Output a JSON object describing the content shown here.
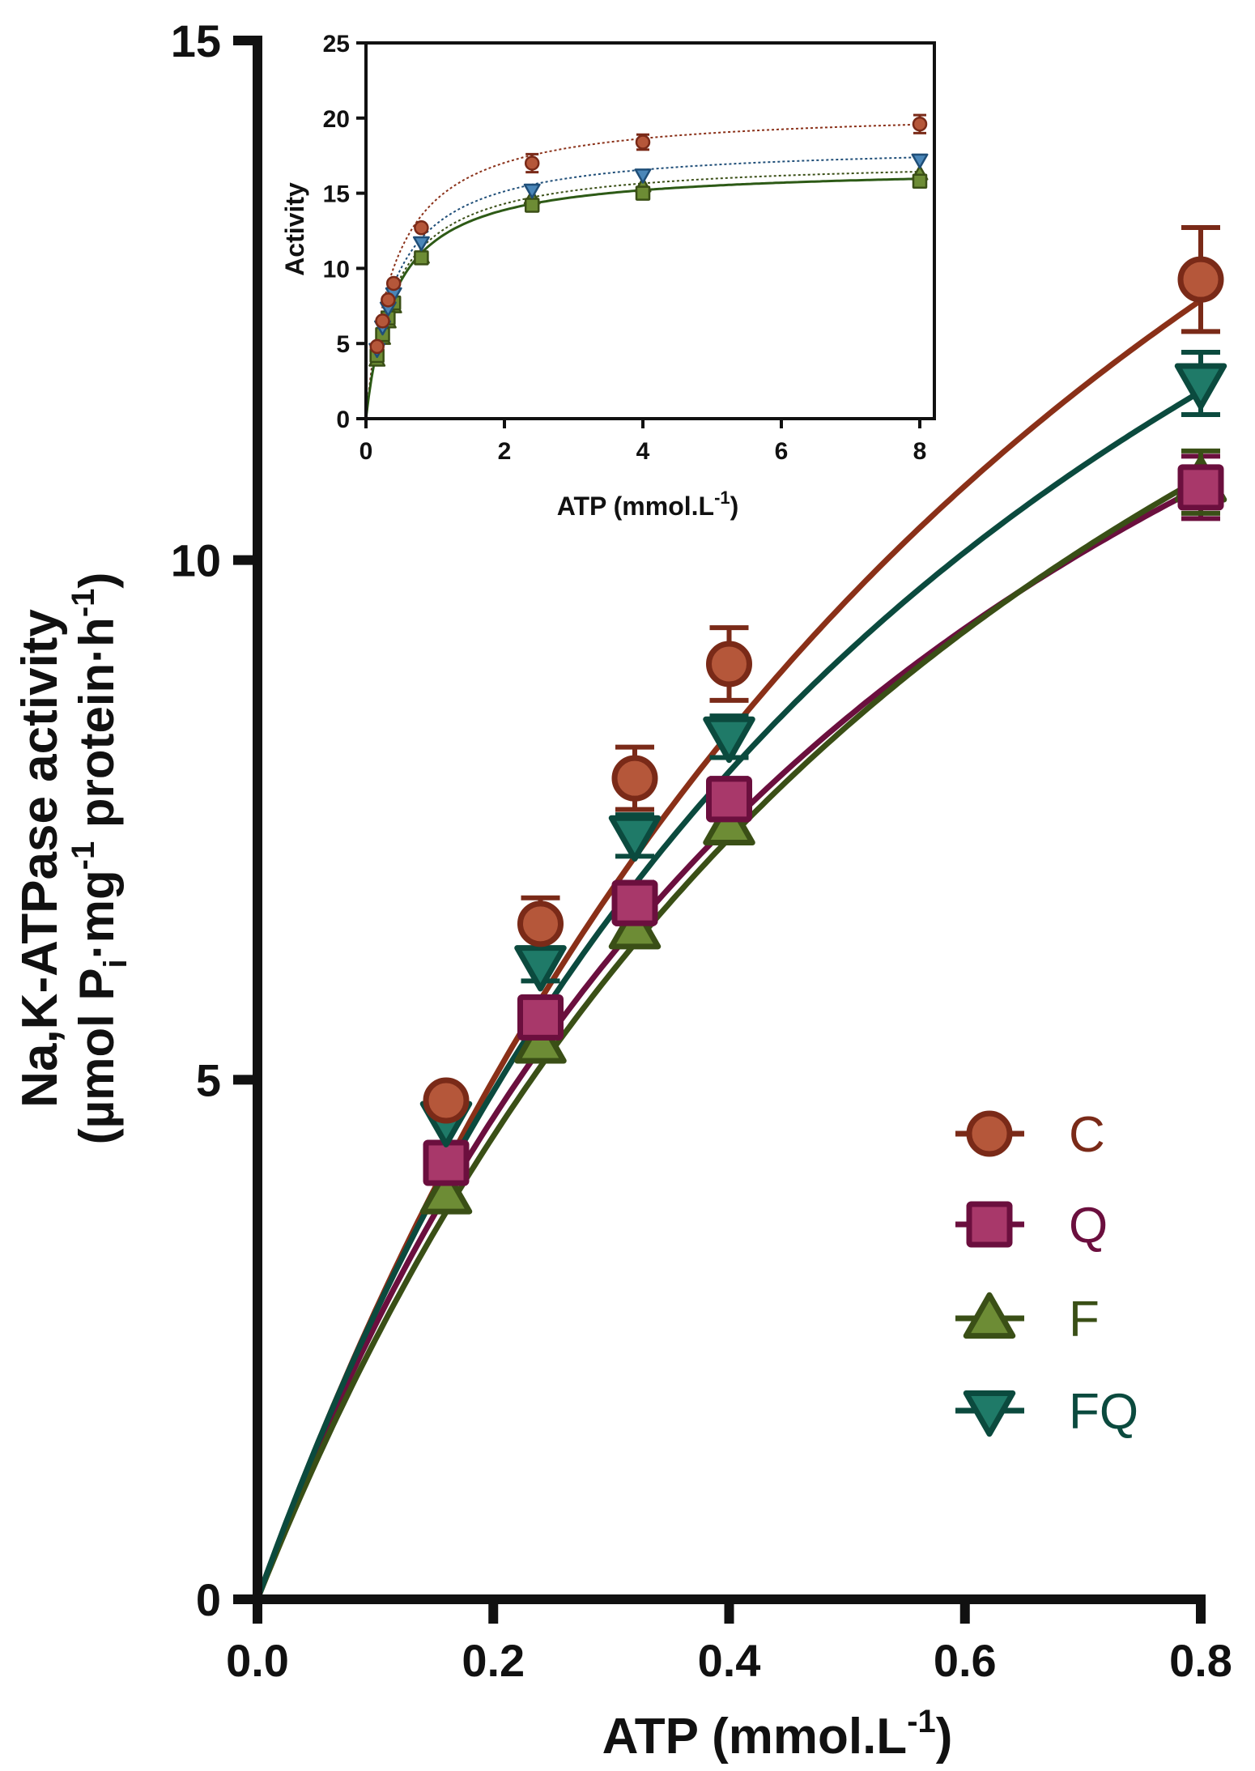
{
  "chart_data": [
    {
      "type": "line",
      "title": "",
      "xlabel": "ATP (mmol.L",
      "xlabel_sup": "-1",
      "xlabel_close": ")",
      "ylabel_line1": "Na,K-ATPase activity",
      "ylabel_line2_a": "(µmol P",
      "ylabel_line2_sub_i": "i",
      "ylabel_line2_b": "·mg",
      "ylabel_line2_sup1": "-1",
      "ylabel_line2_c": " protein·h",
      "ylabel_line2_sup2": "-1",
      "ylabel_line2_d": ")",
      "xlim": [
        0,
        0.8
      ],
      "ylim": [
        0,
        15
      ],
      "x_ticks": [
        "0.0",
        "0.2",
        "0.4",
        "0.6",
        "0.8"
      ],
      "y_ticks": [
        "0",
        "5",
        "10",
        "15"
      ],
      "x": [
        0.16,
        0.24,
        0.32,
        0.4,
        0.8
      ],
      "series": [
        {
          "name": "C",
          "marker": "circle",
          "color": "#b5573a",
          "edge": "#7a2a18",
          "line": "#8a3018",
          "values": [
            4.8,
            6.5,
            7.9,
            9.0,
            12.7
          ],
          "errors": [
            0.0,
            0.25,
            0.3,
            0.35,
            0.5
          ],
          "vmax": 25.0,
          "km": 0.8
        },
        {
          "name": "Q",
          "marker": "square",
          "color": "#a8386a",
          "edge": "#6b0f3e",
          "line": "#6b0f3e",
          "values": [
            4.2,
            5.6,
            6.7,
            7.7,
            10.7
          ],
          "errors": [
            0.0,
            0.15,
            0.2,
            0.2,
            0.3
          ],
          "vmax": 19.0,
          "km": 0.62
        },
        {
          "name": "F",
          "marker": "triangle-up",
          "color": "#6d8c35",
          "edge": "#3a4f16",
          "line": "#3a4f16",
          "values": [
            3.9,
            5.35,
            6.45,
            7.45,
            10.75
          ],
          "errors": [
            0.0,
            0.1,
            0.15,
            0.15,
            0.3
          ],
          "vmax": 20.5,
          "km": 0.72
        },
        {
          "name": "FQ",
          "marker": "triangle-down",
          "color": "#1f7a68",
          "edge": "#0b4a3e",
          "line": "#0b4a3e",
          "values": [
            4.6,
            6.1,
            7.35,
            8.3,
            11.7
          ],
          "errors": [
            0.0,
            0.15,
            0.2,
            0.2,
            0.3
          ],
          "vmax": 21.5,
          "km": 0.68
        }
      ],
      "legend_position": "right"
    },
    {
      "type": "line",
      "title": "",
      "xlabel": "ATP (mmol.L",
      "xlabel_sup": "-1",
      "xlabel_close": ")",
      "ylabel": "Activity",
      "xlim": [
        0,
        8
      ],
      "ylim": [
        0,
        25
      ],
      "x_ticks": [
        "0",
        "2",
        "4",
        "6",
        "8"
      ],
      "y_ticks": [
        "0",
        "5",
        "10",
        "15",
        "20",
        "25"
      ],
      "x": [
        0.16,
        0.24,
        0.32,
        0.4,
        0.8,
        2.4,
        4.0,
        8.0
      ],
      "series": [
        {
          "name": "C",
          "marker": "circle",
          "color": "#b5573a",
          "edge": "#7a2a18",
          "values": [
            4.8,
            6.5,
            7.9,
            9.0,
            12.7,
            17.0,
            18.4,
            19.6
          ],
          "vmax": 20.6,
          "km": 0.42
        },
        {
          "name": "FQ",
          "marker": "triangle-down",
          "color": "#4a86b8",
          "edge": "#1f4e78",
          "values": [
            4.6,
            6.1,
            7.35,
            8.3,
            11.7,
            15.2,
            16.2,
            17.2
          ],
          "vmax": 18.3,
          "km": 0.42
        },
        {
          "name": "F",
          "marker": "triangle-up",
          "color": "#6d8c35",
          "edge": "#3a4f16",
          "values": [
            3.9,
            5.35,
            6.45,
            7.45,
            10.75,
            14.7,
            15.5,
            16.3
          ],
          "vmax": 17.3,
          "km": 0.42
        },
        {
          "name": "Q",
          "marker": "square",
          "color": "#6d8c35",
          "edge": "#3a4f16",
          "values": [
            4.2,
            5.6,
            6.7,
            7.7,
            10.7,
            14.2,
            15.0,
            15.8
          ],
          "vmax": 16.8,
          "km": 0.42
        }
      ]
    }
  ],
  "colors": {
    "axis": "#111111",
    "background": "#ffffff"
  }
}
